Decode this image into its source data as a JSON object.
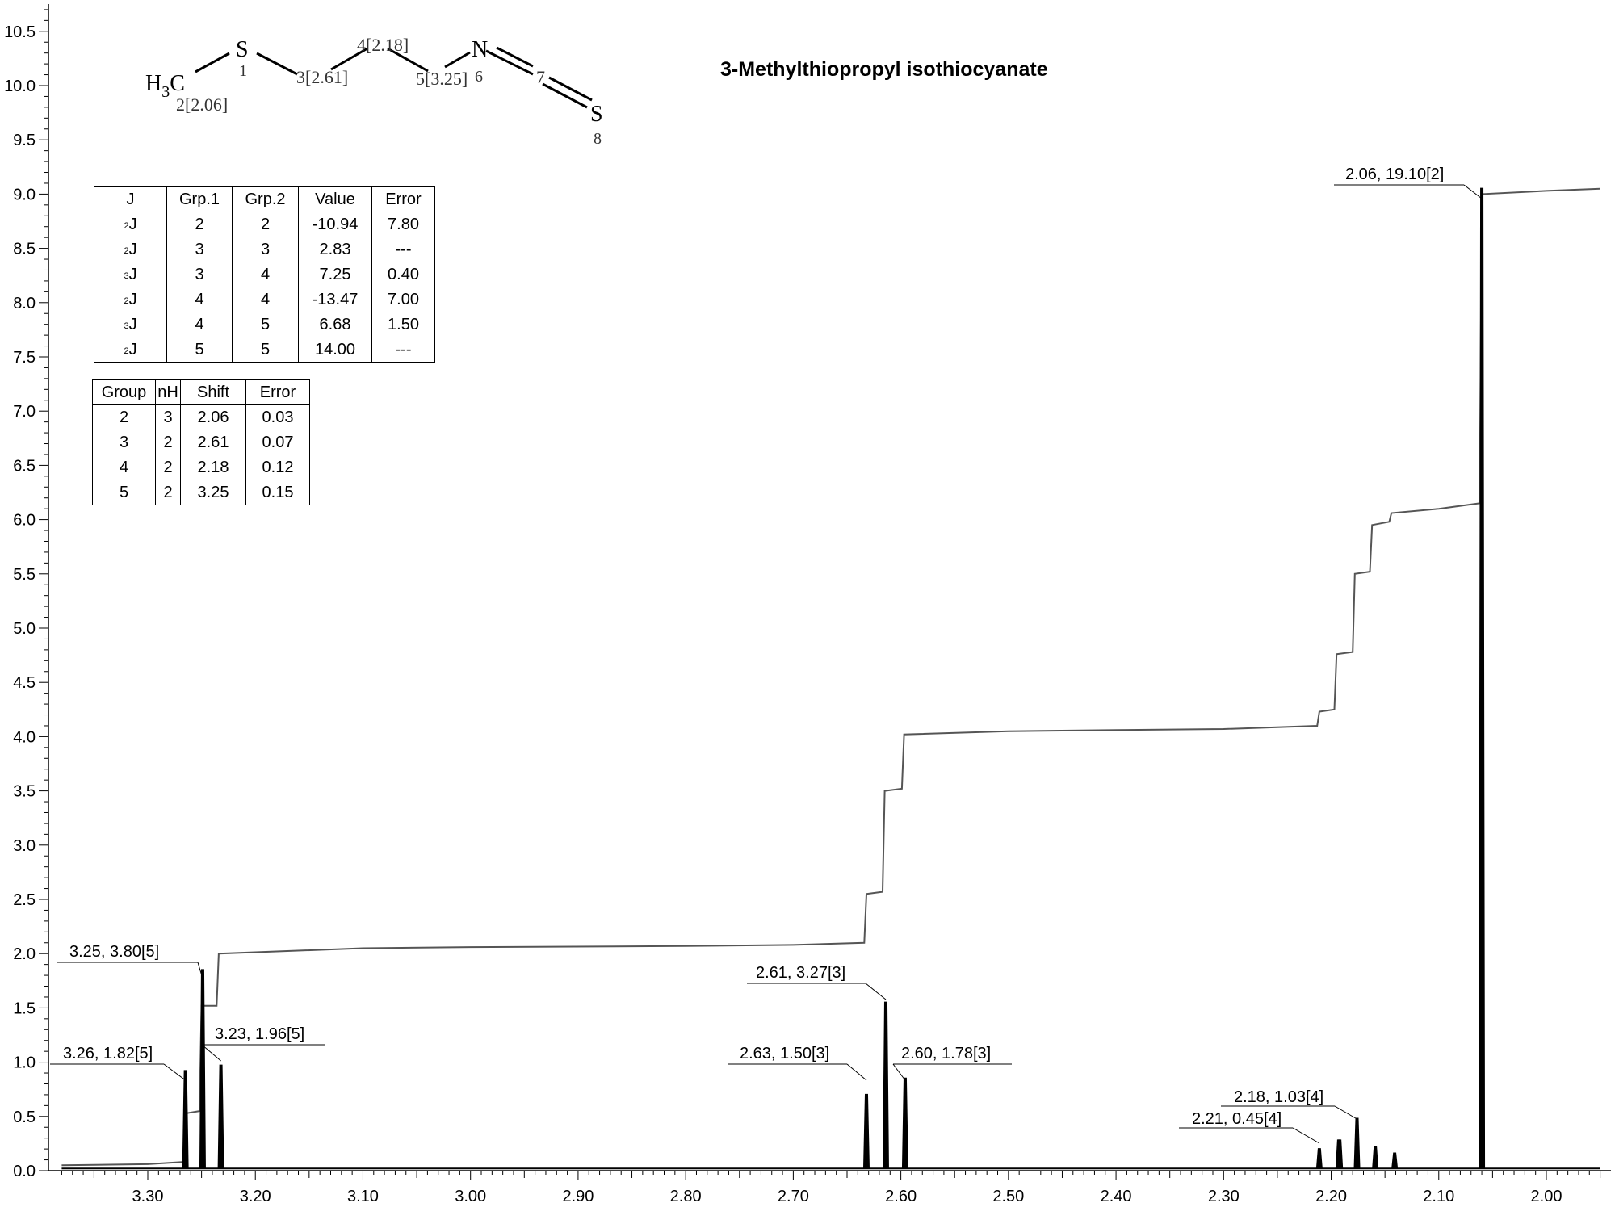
{
  "chart_data": {
    "type": "line",
    "title": "3-Methylthiopropyl isothiocyanate",
    "xlabel": "",
    "ylabel": "",
    "x_range": [
      3.38,
      1.95
    ],
    "x_reversed": true,
    "y_range": [
      0.0,
      10.8
    ],
    "x_ticks": [
      "3.30",
      "3.20",
      "3.10",
      "3.00",
      "2.90",
      "2.80",
      "2.70",
      "2.60",
      "2.50",
      "2.40",
      "2.30",
      "2.20",
      "2.10",
      "2.00"
    ],
    "x_tick_values": [
      3.3,
      3.2,
      3.1,
      3.0,
      2.9,
      2.8,
      2.7,
      2.6,
      2.5,
      2.4,
      2.3,
      2.2,
      2.1,
      2.0
    ],
    "y_ticks": [
      "0.0",
      "0.5",
      "1.0",
      "1.5",
      "2.0",
      "2.5",
      "3.0",
      "3.5",
      "4.0",
      "4.5",
      "5.0",
      "5.5",
      "6.0",
      "6.5",
      "7.0",
      "7.5",
      "8.0",
      "8.5",
      "9.0",
      "9.5",
      "10.0",
      "10.5"
    ],
    "y_tick_values": [
      0.0,
      0.5,
      1.0,
      1.5,
      2.0,
      2.5,
      3.0,
      3.5,
      4.0,
      4.5,
      5.0,
      5.5,
      6.0,
      6.5,
      7.0,
      7.5,
      8.0,
      8.5,
      9.0,
      9.5,
      10.0,
      10.5
    ],
    "series": [
      {
        "name": "spectrum",
        "peaks": [
          {
            "x": 3.265,
            "y": 0.92
          },
          {
            "x": 3.249,
            "y": 1.85
          },
          {
            "x": 3.232,
            "y": 0.97
          },
          {
            "x": 2.632,
            "y": 0.7
          },
          {
            "x": 2.614,
            "y": 1.55
          },
          {
            "x": 2.596,
            "y": 0.85
          },
          {
            "x": 2.211,
            "y": 0.2
          },
          {
            "x": 2.193,
            "y": 0.28
          },
          {
            "x": 2.192,
            "y": 0.28
          },
          {
            "x": 2.176,
            "y": 0.48
          },
          {
            "x": 2.159,
            "y": 0.22
          },
          {
            "x": 2.141,
            "y": 0.16
          },
          {
            "x": 2.06,
            "y": 9.05
          }
        ]
      },
      {
        "name": "integral",
        "points": [
          [
            3.38,
            0.05
          ],
          [
            3.3,
            0.06
          ],
          [
            3.268,
            0.08
          ],
          [
            3.266,
            0.08
          ],
          [
            3.264,
            0.53
          ],
          [
            3.252,
            0.55
          ],
          [
            3.25,
            1.52
          ],
          [
            3.236,
            1.52
          ],
          [
            3.234,
            2.0
          ],
          [
            3.1,
            2.05
          ],
          [
            3.0,
            2.06
          ],
          [
            2.8,
            2.07
          ],
          [
            2.7,
            2.08
          ],
          [
            2.634,
            2.1
          ],
          [
            2.632,
            2.55
          ],
          [
            2.617,
            2.57
          ],
          [
            2.615,
            3.5
          ],
          [
            2.599,
            3.52
          ],
          [
            2.597,
            4.02
          ],
          [
            2.5,
            4.05
          ],
          [
            2.4,
            4.06
          ],
          [
            2.3,
            4.07
          ],
          [
            2.213,
            4.1
          ],
          [
            2.211,
            4.23
          ],
          [
            2.197,
            4.25
          ],
          [
            2.195,
            4.76
          ],
          [
            2.18,
            4.78
          ],
          [
            2.178,
            5.5
          ],
          [
            2.164,
            5.52
          ],
          [
            2.162,
            5.95
          ],
          [
            2.146,
            5.98
          ],
          [
            2.144,
            6.06
          ],
          [
            2.1,
            6.1
          ],
          [
            2.062,
            6.15
          ],
          [
            2.06,
            9.0
          ],
          [
            2.0,
            9.03
          ],
          [
            1.95,
            9.05
          ]
        ]
      }
    ],
    "annotations": [
      {
        "text": "3.25, 3.80[5]",
        "x": 3.249
      },
      {
        "text": "3.26, 1.82[5]",
        "x": 3.265
      },
      {
        "text": "3.23, 1.96[5]",
        "x": 3.232
      },
      {
        "text": "2.61, 3.27[3]",
        "x": 2.614
      },
      {
        "text": "2.63, 1.50[3]",
        "x": 2.632
      },
      {
        "text": "2.60, 1.78[3]",
        "x": 2.596
      },
      {
        "text": "2.18, 1.03[4]",
        "x": 2.176
      },
      {
        "text": "2.21, 0.45[4]",
        "x": 2.211
      },
      {
        "text": "2.06, 19.10[2]",
        "x": 2.06
      }
    ]
  },
  "structure": {
    "h3c": "H",
    "h3c_sub": "3",
    "h3c_c": "C",
    "atoms": {
      "c2_label": "2[2.06]",
      "s1": "S",
      "s1_label": "1",
      "c3_label": "3[2.61]",
      "c4_label": "4[2.18]",
      "c5_label": "5[3.25]",
      "n6": "N",
      "n6_label": "6",
      "c7_label": "7",
      "s8": "S",
      "s8_label": "8"
    }
  },
  "coupling_table": {
    "headers": [
      "J",
      "Grp.1",
      "Grp.2",
      "Value",
      "Error"
    ],
    "rows": [
      {
        "order": "2",
        "j": "J",
        "g1": "2",
        "g2": "2",
        "value": "-10.94",
        "error": "7.80"
      },
      {
        "order": "2",
        "j": "J",
        "g1": "3",
        "g2": "3",
        "value": "2.83",
        "error": "---"
      },
      {
        "order": "3",
        "j": "J",
        "g1": "3",
        "g2": "4",
        "value": "7.25",
        "error": "0.40"
      },
      {
        "order": "2",
        "j": "J",
        "g1": "4",
        "g2": "4",
        "value": "-13.47",
        "error": "7.00"
      },
      {
        "order": "3",
        "j": "J",
        "g1": "4",
        "g2": "5",
        "value": "6.68",
        "error": "1.50"
      },
      {
        "order": "2",
        "j": "J",
        "g1": "5",
        "g2": "5",
        "value": "14.00",
        "error": "---"
      }
    ]
  },
  "shift_table": {
    "headers": [
      "Group",
      "nH",
      "Shift",
      "Error"
    ],
    "rows": [
      {
        "group": "2",
        "nh": "3",
        "shift": "2.06",
        "error": "0.03"
      },
      {
        "group": "3",
        "nh": "2",
        "shift": "2.61",
        "error": "0.07"
      },
      {
        "group": "4",
        "nh": "2",
        "shift": "2.18",
        "error": "0.12"
      },
      {
        "group": "5",
        "nh": "2",
        "shift": "3.25",
        "error": "0.15"
      }
    ]
  }
}
